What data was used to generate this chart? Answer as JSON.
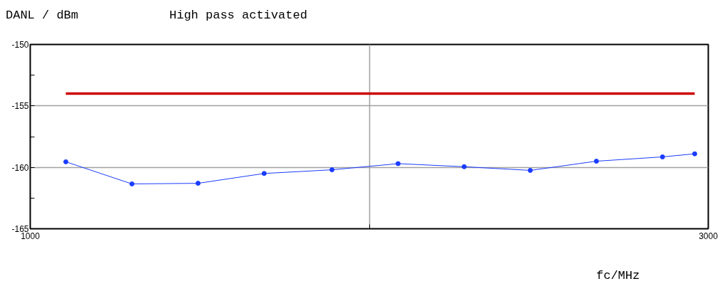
{
  "chart_data": {
    "type": "line",
    "title": "High pass activated",
    "ylabel": "DANL / dBm",
    "xlabel": "fc/MHz",
    "x": [
      1105,
      1300,
      1495,
      1690,
      1890,
      2085,
      2280,
      2475,
      2670,
      2865,
      2960
    ],
    "series": [
      {
        "color": "#1a3cff",
        "values": [
          -159.55,
          -161.35,
          -161.3,
          -160.5,
          -160.2,
          -159.7,
          -159.95,
          -160.25,
          -159.5,
          -159.15,
          -158.9
        ],
        "marker": "circle"
      },
      {
        "color": "#cc0000",
        "x": [
          1105,
          2960
        ],
        "values": [
          -154,
          -154
        ],
        "marker": "none"
      }
    ],
    "xlim": [
      1000,
      3000
    ],
    "xticks": [
      1000,
      {
        "value": 2000,
        "label": null
      },
      3000
    ],
    "ylim": [
      -165,
      -150
    ],
    "yticks": [
      -150,
      {
        "value": -152.5,
        "label": null
      },
      -155,
      {
        "value": -157.5,
        "label": null
      },
      -160,
      {
        "value": -162.5,
        "label": null
      },
      -165
    ],
    "grid": true
  }
}
